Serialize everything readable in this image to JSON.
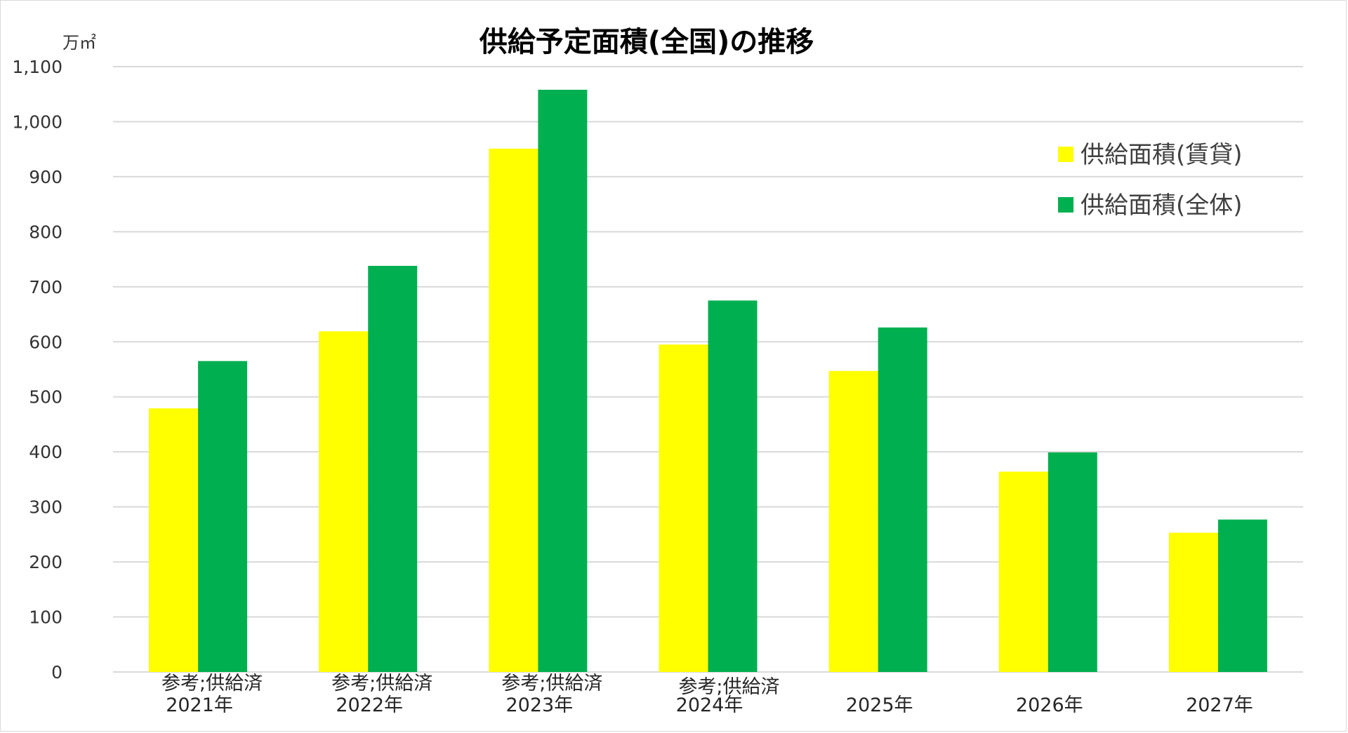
{
  "chart_data": {
    "type": "bar",
    "title": "供給予定面積(全国)の推移",
    "unit_label": "万㎡",
    "categories": [
      [
        "参考;供給済",
        "2021年"
      ],
      [
        "参考;供給済",
        "2022年"
      ],
      [
        "参考;供給済",
        "2023年"
      ],
      [
        "参考;供給済",
        "2024年"
      ],
      [
        "",
        "2025年"
      ],
      [
        "",
        "2026年"
      ],
      [
        "",
        "2027年"
      ]
    ],
    "series": [
      {
        "name": "供給面積(賃貸)",
        "color": "#ffff00",
        "values": [
          479,
          619,
          951,
          595,
          547,
          364,
          253
        ]
      },
      {
        "name": "供給面積(全体)",
        "color": "#00b050",
        "values": [
          565,
          738,
          1058,
          675,
          626,
          399,
          277
        ]
      }
    ],
    "ylim": [
      0,
      1100
    ],
    "yticks": [
      0,
      100,
      200,
      300,
      400,
      500,
      600,
      700,
      800,
      900,
      1000,
      1100
    ],
    "ytick_labels": [
      "0",
      "100",
      "200",
      "300",
      "400",
      "500",
      "600",
      "700",
      "800",
      "900",
      "1,000",
      "1,100"
    ],
    "grid": true,
    "legend_position": "top-right"
  }
}
